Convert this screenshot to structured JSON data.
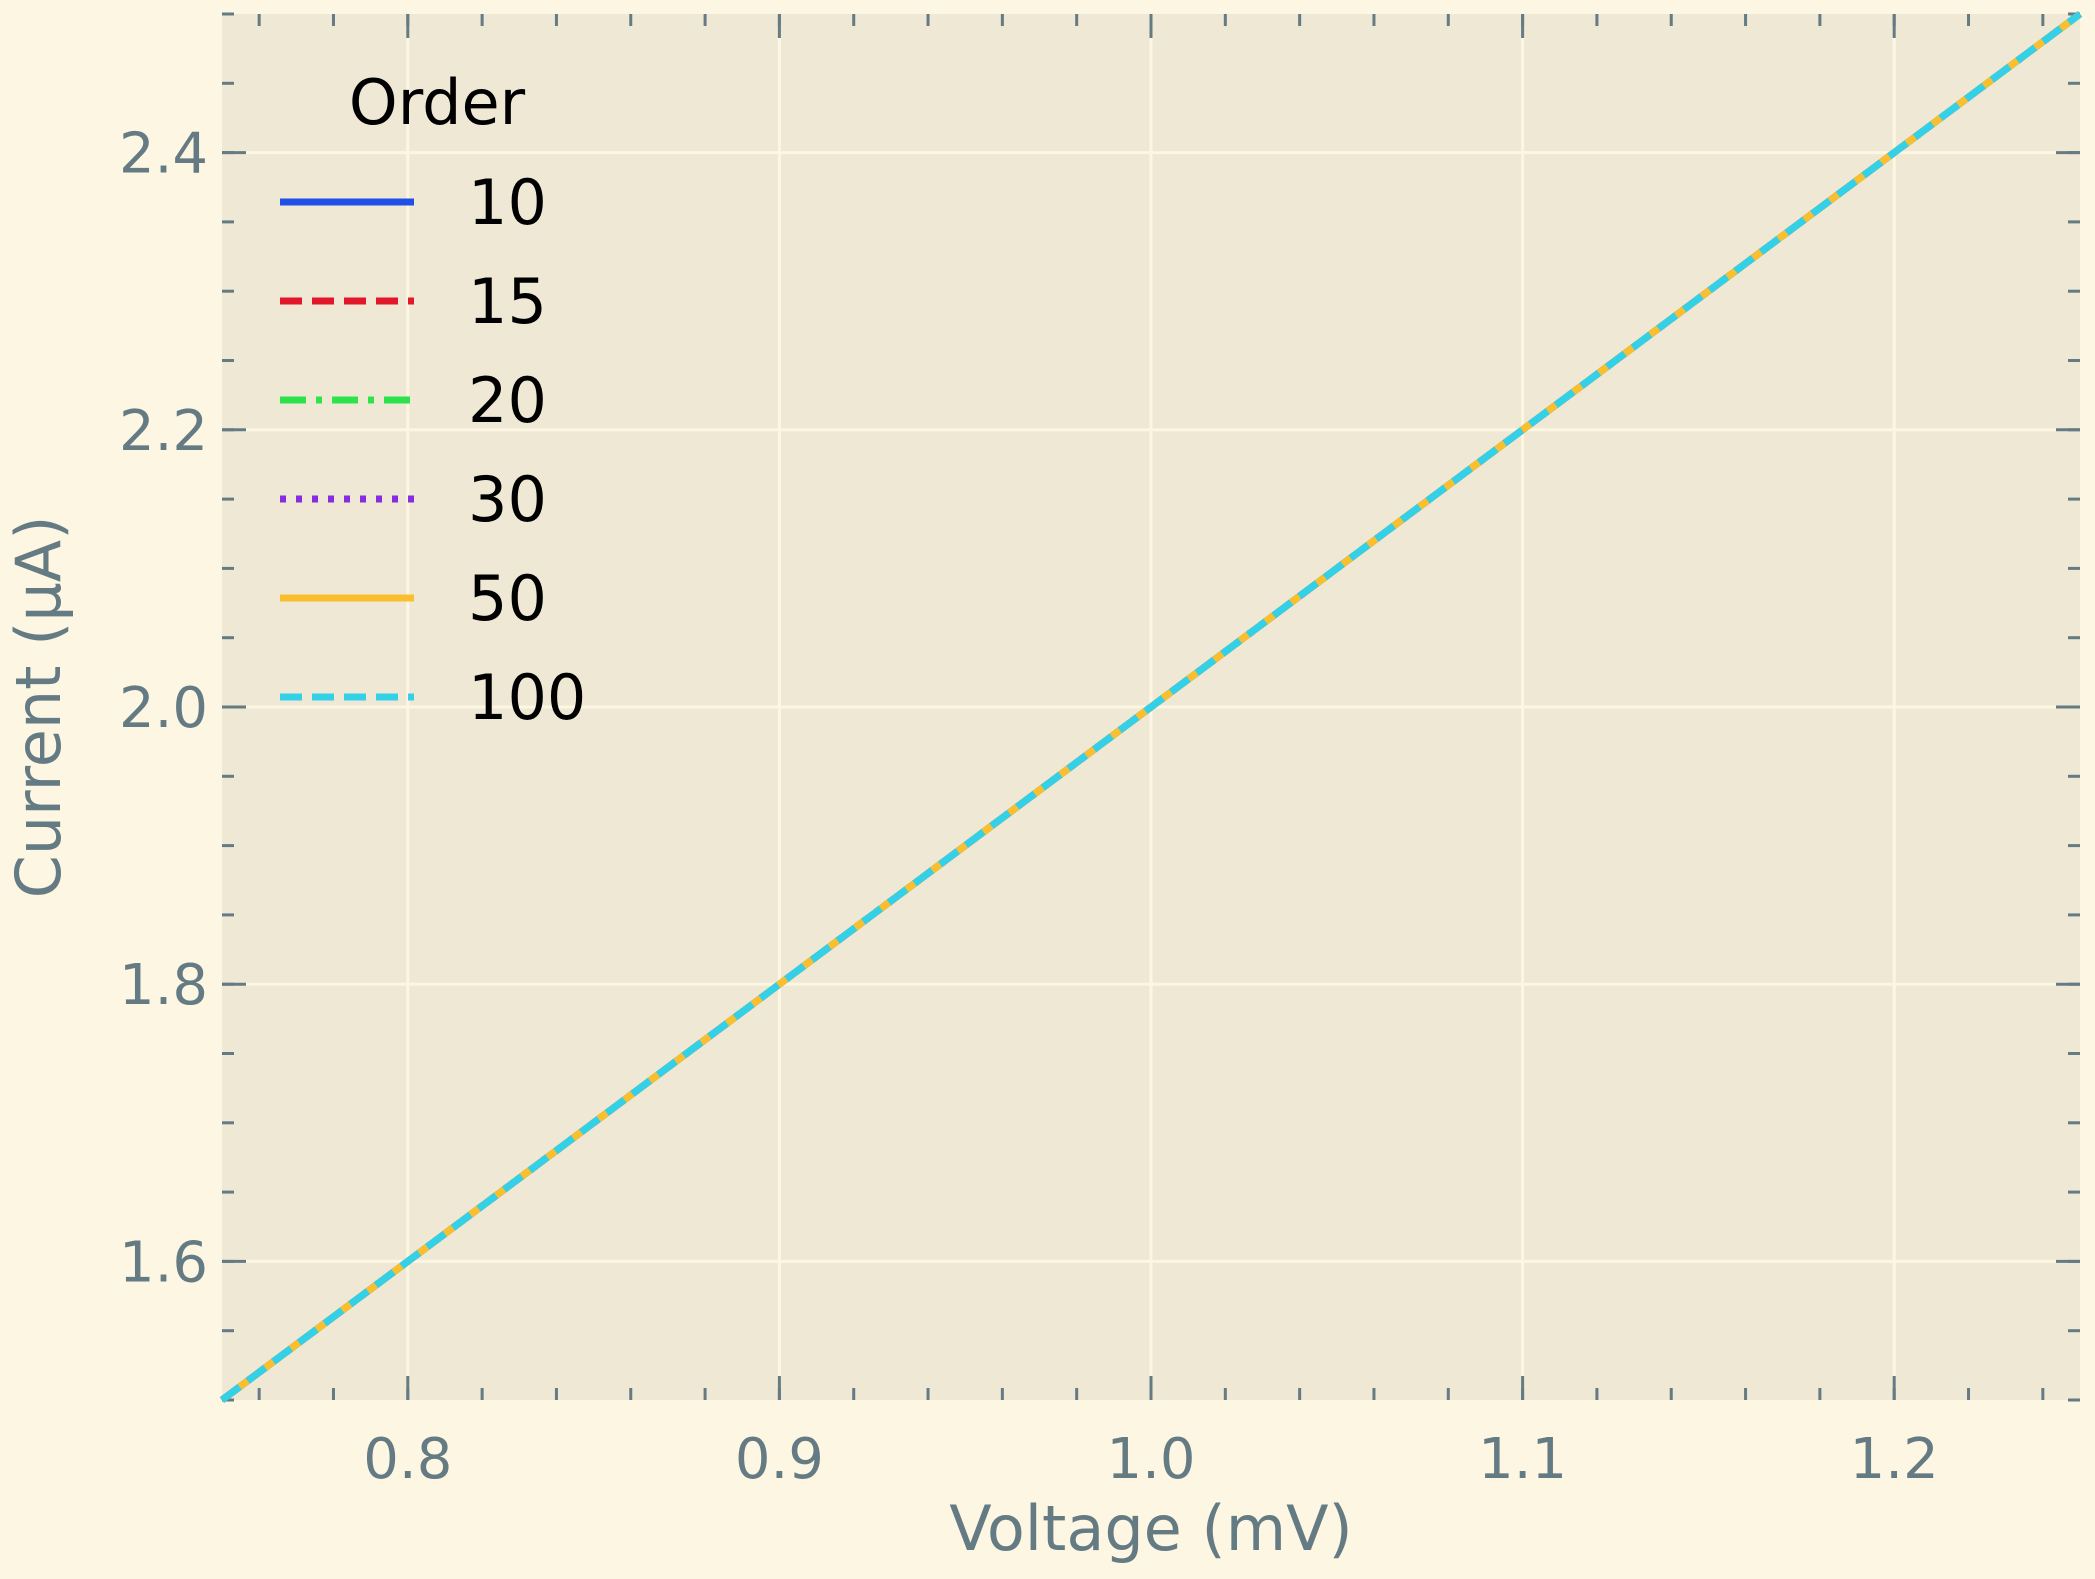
{
  "chart_data": {
    "type": "line",
    "title": "",
    "xlabel": "Voltage (mV)",
    "ylabel": "Current (μA)",
    "xlim": [
      0.75,
      1.25
    ],
    "ylim": [
      1.5,
      2.5
    ],
    "x_ticks": [
      0.8,
      0.9,
      1.0,
      1.1,
      1.2
    ],
    "x_tick_labels": [
      "0.8",
      "0.9",
      "1.0",
      "1.1",
      "1.2"
    ],
    "y_ticks": [
      1.6,
      1.8,
      2.0,
      2.2,
      2.4
    ],
    "y_tick_labels": [
      "1.6",
      "1.8",
      "2.0",
      "2.2",
      "2.4"
    ],
    "grid": true,
    "legend": {
      "title": "Order",
      "position": "upper-left"
    },
    "x": [
      0.75,
      1.25
    ],
    "series": [
      {
        "name": "10",
        "color": "#1f4fe6",
        "dash": "solid",
        "values": [
          1.5,
          2.5
        ]
      },
      {
        "name": "15",
        "color": "#e3172a",
        "dash": "dashed",
        "values": [
          1.5,
          2.5
        ]
      },
      {
        "name": "20",
        "color": "#2ee34a",
        "dash": "dashdot",
        "values": [
          1.5,
          2.5
        ]
      },
      {
        "name": "30",
        "color": "#8a2be2",
        "dash": "dotted",
        "values": [
          1.5,
          2.5
        ]
      },
      {
        "name": "50",
        "color": "#fbbf2e",
        "dash": "solid",
        "values": [
          1.5,
          2.5
        ]
      },
      {
        "name": "100",
        "color": "#33d1e8",
        "dash": "dashed",
        "values": [
          1.5,
          2.5
        ]
      }
    ],
    "colors": {
      "background": "#fdf6e3",
      "plot_area": "#eee8d5",
      "grid": "#fdf6e3",
      "text": "#657b83"
    }
  }
}
